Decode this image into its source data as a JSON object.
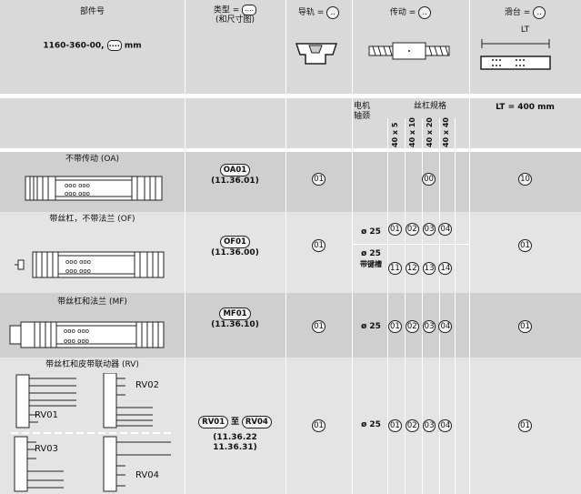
{
  "header": {
    "part_number_label": "部件号",
    "part_number_value": "1160-360-00,",
    "part_number_placeholder": "....",
    "part_number_unit": "mm",
    "type_label": "类型 =",
    "type_placeholder": "....",
    "type_sub": "(和尺寸图)",
    "rail_label": "导轨 =",
    "drive_label": "传动 =",
    "carriage_label": "滑台 =",
    "small_placeholder": "..",
    "carriage_length_label": "LT"
  },
  "subheader": {
    "motor_journal": [
      "电机",
      "轴颈"
    ],
    "screw_spec": "丝杠规格",
    "screw_sizes": [
      "40 x 5",
      "40 x 10",
      "40 x 20",
      "40 x 40"
    ],
    "carriage_length": "LT = 400 mm"
  },
  "rows": [
    {
      "name": "不带传动 (OA)",
      "type_code": "OA01",
      "type_ref": "(11.36.01)",
      "rail": "01",
      "drive_code": "00",
      "carriage": "10"
    },
    {
      "name": "带丝杠，不带法兰 (OF)",
      "type_code": "OF01",
      "type_ref": "(11.36.00)",
      "rail": "01",
      "journals": [
        {
          "label": "ø 25",
          "codes": [
            "01",
            "02",
            "03",
            "04"
          ]
        },
        {
          "label": "ø 25",
          "label2": "带键槽",
          "codes": [
            "11",
            "12",
            "13",
            "14"
          ]
        }
      ],
      "carriage": "01"
    },
    {
      "name": "带丝杠和法兰 (MF)",
      "type_code": "MF01",
      "type_ref": "(11.36.10)",
      "rail": "01",
      "journal": "ø 25",
      "codes": [
        "01",
        "02",
        "03",
        "04"
      ],
      "carriage": "01"
    },
    {
      "name": "带丝杠和皮带联动器 (RV)",
      "variants": [
        "RV01",
        "RV02",
        "RV03",
        "RV04"
      ],
      "type_code_from": "RV01",
      "type_to": "至",
      "type_code_to": "RV04",
      "type_ref1": "(11.36.22",
      "type_ref2": "11.36.31)",
      "rail": "01",
      "journal": "ø 25",
      "codes": [
        "01",
        "02",
        "03",
        "04"
      ],
      "carriage": "01"
    }
  ],
  "colors": {
    "header": "#d9d9d9",
    "dark_row": "#cfcfcf",
    "light_row": "#e4e4e4",
    "line": "#ffffff"
  }
}
